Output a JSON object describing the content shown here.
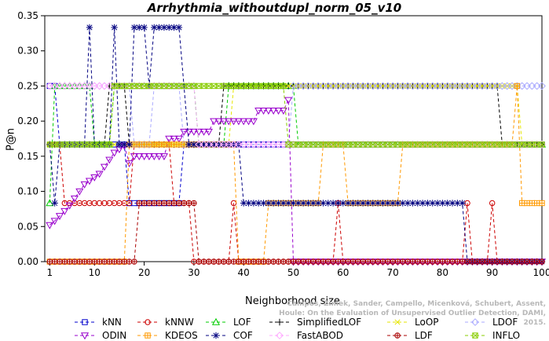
{
  "chart_data": {
    "type": "line",
    "title": "Arrhythmia_withoutdupl_norm_05_v10",
    "xlabel": "Neighborhood size",
    "ylabel": "P@n",
    "xlim": [
      0,
      100
    ],
    "ylim": [
      0,
      0.35
    ],
    "xticks": [
      1,
      10,
      20,
      30,
      40,
      50,
      60,
      70,
      80,
      90,
      100
    ],
    "yticks": [
      0.0,
      0.05,
      0.1,
      0.15,
      0.2,
      0.25,
      0.3,
      0.35
    ],
    "grid": false,
    "legend_position": "bottom",
    "credit": "Campos, Zimek, Sander, Campello, Micenková, Schubert, Assent, Houle: On the Evaluation of Unsupervised Outlier Detection, DAMI, 2015.",
    "series": [
      {
        "name": "kNN",
        "color": "#0000cc",
        "marker": "square",
        "dash": "4,3",
        "segments": [
          [
            1,
            0.25
          ],
          [
            2,
            0.25
          ],
          [
            3,
            0.1667
          ],
          [
            16,
            0.1667
          ],
          [
            17,
            0.0833
          ],
          [
            27,
            0.0833
          ],
          [
            28,
            0.1667
          ],
          [
            100,
            0.1667
          ]
        ]
      },
      {
        "name": "kNNW",
        "color": "#cc0000",
        "marker": "circle",
        "dash": "4,3",
        "segments": [
          [
            1,
            0.1667
          ],
          [
            3,
            0.1667
          ],
          [
            4,
            0.0833
          ],
          [
            17,
            0.0833
          ],
          [
            18,
            0.1667
          ],
          [
            25,
            0.1667
          ],
          [
            26,
            0.0833
          ],
          [
            29,
            0.0833
          ],
          [
            30,
            0.0
          ],
          [
            37,
            0.0
          ],
          [
            38,
            0.0833
          ],
          [
            39,
            0.0
          ],
          [
            58,
            0.0
          ],
          [
            59,
            0.0833
          ],
          [
            60,
            0.0
          ],
          [
            84,
            0.0
          ],
          [
            85,
            0.0833
          ],
          [
            86,
            0.0
          ],
          [
            89,
            0.0
          ],
          [
            90,
            0.0833
          ],
          [
            91,
            0.0
          ],
          [
            100,
            0.0
          ]
        ]
      },
      {
        "name": "LOF",
        "color": "#00cc00",
        "marker": "triangle-up",
        "dash": "4,3",
        "segments": [
          [
            1,
            0.0833
          ],
          [
            2,
            0.25
          ],
          [
            9,
            0.25
          ],
          [
            10,
            0.1667
          ],
          [
            13,
            0.1667
          ],
          [
            14,
            0.25
          ],
          [
            30,
            0.25
          ],
          [
            31,
            0.1667
          ],
          [
            36,
            0.1667
          ],
          [
            37,
            0.25
          ],
          [
            50,
            0.25
          ],
          [
            51,
            0.1667
          ],
          [
            100,
            0.1667
          ]
        ]
      },
      {
        "name": "SimplifiedLOF",
        "color": "#000000",
        "marker": "plus",
        "dash": "4,3",
        "segments": [
          [
            1,
            0.1667
          ],
          [
            12,
            0.1667
          ],
          [
            13,
            0.25
          ],
          [
            16,
            0.25
          ],
          [
            17,
            0.1667
          ],
          [
            35,
            0.1667
          ],
          [
            36,
            0.25
          ],
          [
            91,
            0.25
          ],
          [
            92,
            0.1667
          ],
          [
            100,
            0.1667
          ]
        ]
      },
      {
        "name": "LoOP",
        "color": "#e6e600",
        "marker": "x",
        "dash": "4,3",
        "segments": [
          [
            1,
            0.1667
          ],
          [
            37,
            0.1667
          ],
          [
            38,
            0.25
          ],
          [
            95,
            0.25
          ],
          [
            96,
            0.1667
          ],
          [
            100,
            0.1667
          ]
        ]
      },
      {
        "name": "LDOF",
        "color": "#aaaaff",
        "marker": "diamond",
        "dash": "4,3",
        "segments": [
          [
            1,
            0.25
          ],
          [
            17,
            0.25
          ],
          [
            18,
            0.1667
          ],
          [
            21,
            0.1667
          ],
          [
            22,
            0.25
          ],
          [
            27,
            0.25
          ],
          [
            28,
            0.1667
          ],
          [
            49,
            0.1667
          ],
          [
            50,
            0.25
          ],
          [
            100,
            0.25
          ]
        ]
      },
      {
        "name": "ODIN",
        "color": "#9900cc",
        "marker": "triangle-down",
        "dash": "4,3",
        "segments": [
          [
            1,
            0.052
          ],
          [
            2,
            0.058
          ],
          [
            3,
            0.065
          ],
          [
            4,
            0.072
          ],
          [
            5,
            0.08
          ],
          [
            6,
            0.09
          ],
          [
            7,
            0.1
          ],
          [
            8,
            0.11
          ],
          [
            9,
            0.115
          ],
          [
            10,
            0.12
          ],
          [
            11,
            0.125
          ],
          [
            12,
            0.135
          ],
          [
            13,
            0.145
          ],
          [
            14,
            0.155
          ],
          [
            15,
            0.16
          ],
          [
            16,
            0.165
          ],
          [
            17,
            0.14
          ],
          [
            18,
            0.15
          ],
          [
            24,
            0.15
          ],
          [
            25,
            0.175
          ],
          [
            27,
            0.175
          ],
          [
            28,
            0.185
          ],
          [
            33,
            0.185
          ],
          [
            34,
            0.2
          ],
          [
            42,
            0.2
          ],
          [
            43,
            0.215
          ],
          [
            48,
            0.215
          ],
          [
            49,
            0.23
          ],
          [
            50,
            0.0
          ],
          [
            100,
            0.0
          ]
        ]
      },
      {
        "name": "KDEOS",
        "color": "#ff9900",
        "marker": "square-cross",
        "dash": "4,3",
        "segments": [
          [
            1,
            0.0
          ],
          [
            16,
            0.0
          ],
          [
            17,
            0.1667
          ],
          [
            38,
            0.1667
          ],
          [
            39,
            0.0
          ],
          [
            44,
            0.0
          ],
          [
            45,
            0.0833
          ],
          [
            55,
            0.0833
          ],
          [
            56,
            0.1667
          ],
          [
            60,
            0.1667
          ],
          [
            61,
            0.0833
          ],
          [
            71,
            0.0833
          ],
          [
            72,
            0.1667
          ],
          [
            94,
            0.1667
          ],
          [
            95,
            0.25
          ],
          [
            96,
            0.0833
          ],
          [
            100,
            0.0833
          ]
        ]
      },
      {
        "name": "COF",
        "color": "#000080",
        "marker": "asterisk",
        "dash": "4,3",
        "segments": [
          [
            1,
            0.1667
          ],
          [
            2,
            0.0833
          ],
          [
            3,
            0.1667
          ],
          [
            8,
            0.1667
          ],
          [
            9,
            0.3333
          ],
          [
            10,
            0.1667
          ],
          [
            13,
            0.1667
          ],
          [
            14,
            0.3333
          ],
          [
            15,
            0.1667
          ],
          [
            17,
            0.1667
          ],
          [
            18,
            0.3333
          ],
          [
            20,
            0.3333
          ],
          [
            21,
            0.25
          ],
          [
            22,
            0.3333
          ],
          [
            27,
            0.3333
          ],
          [
            28,
            0.25
          ],
          [
            29,
            0.1667
          ],
          [
            39,
            0.1667
          ],
          [
            40,
            0.0833
          ],
          [
            84,
            0.0833
          ],
          [
            85,
            0.0
          ],
          [
            100,
            0.0
          ]
        ]
      },
      {
        "name": "FastABOD",
        "color": "#ffaaff",
        "marker": "diamond",
        "dash": "4,3",
        "segments": [
          [
            1,
            0.25
          ],
          [
            30,
            0.25
          ],
          [
            31,
            0.1667
          ],
          [
            100,
            0.1667
          ]
        ]
      },
      {
        "name": "LDF",
        "color": "#aa0000",
        "marker": "circle-plus",
        "dash": "4,3",
        "segments": [
          [
            1,
            0.0
          ],
          [
            18,
            0.0
          ],
          [
            19,
            0.0833
          ],
          [
            30,
            0.0833
          ],
          [
            31,
            0.0
          ],
          [
            100,
            0.0
          ]
        ]
      },
      {
        "name": "INFLO",
        "color": "#88cc00",
        "marker": "square-x",
        "dash": "4,3",
        "segments": [
          [
            1,
            0.1667
          ],
          [
            13,
            0.1667
          ],
          [
            14,
            0.25
          ],
          [
            48,
            0.25
          ],
          [
            49,
            0.1667
          ],
          [
            100,
            0.1667
          ]
        ]
      }
    ]
  }
}
